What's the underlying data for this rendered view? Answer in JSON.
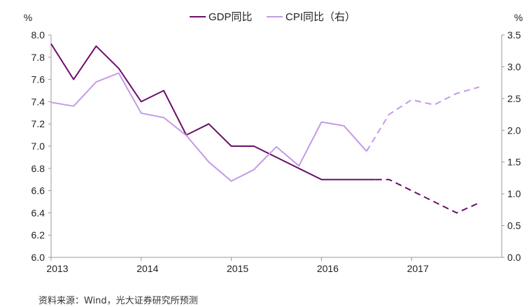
{
  "chart_data": {
    "type": "line",
    "left_unit": "%",
    "right_unit": "%",
    "x_ticks": [
      "2013",
      "2014",
      "2015",
      "2016",
      "2017"
    ],
    "x_range": [
      2013.0,
      2018.0
    ],
    "y_left": {
      "range": [
        6.0,
        8.0
      ],
      "ticks": [
        "8.0",
        "7.8",
        "7.6",
        "7.4",
        "7.2",
        "7.0",
        "6.8",
        "6.6",
        "6.4",
        "6.2",
        "6.0"
      ]
    },
    "y_right": {
      "range": [
        0.0,
        3.5
      ],
      "ticks": [
        "3.5",
        "3.0",
        "2.5",
        "2.0",
        "1.5",
        "1.0",
        "0.5",
        "0.0"
      ]
    },
    "series": [
      {
        "name": "GDP同比",
        "axis": "left",
        "color": "#6b0f6b",
        "actual": [
          [
            2013.0,
            7.92
          ],
          [
            2013.25,
            7.6
          ],
          [
            2013.5,
            7.9
          ],
          [
            2013.75,
            7.7
          ],
          [
            2014.0,
            7.4
          ],
          [
            2014.25,
            7.5
          ],
          [
            2014.5,
            7.1
          ],
          [
            2014.75,
            7.2
          ],
          [
            2015.0,
            7.0
          ],
          [
            2015.25,
            7.0
          ],
          [
            2015.5,
            6.9
          ],
          [
            2015.75,
            6.8
          ],
          [
            2016.0,
            6.7
          ],
          [
            2016.25,
            6.7
          ],
          [
            2016.5,
            6.7
          ],
          [
            2016.6,
            6.7
          ]
        ],
        "forecast": [
          [
            2016.6,
            6.7
          ],
          [
            2016.75,
            6.7
          ],
          [
            2017.0,
            6.6
          ],
          [
            2017.25,
            6.5
          ],
          [
            2017.5,
            6.4
          ],
          [
            2017.75,
            6.49
          ]
        ]
      },
      {
        "name": "CPI同比（右）",
        "axis": "right",
        "color": "#c49ae8",
        "actual": [
          [
            2013.0,
            2.44
          ],
          [
            2013.25,
            2.38
          ],
          [
            2013.5,
            2.76
          ],
          [
            2013.75,
            2.9
          ],
          [
            2014.0,
            2.27
          ],
          [
            2014.25,
            2.2
          ],
          [
            2014.5,
            1.92
          ],
          [
            2014.75,
            1.5
          ],
          [
            2015.0,
            1.2
          ],
          [
            2015.25,
            1.38
          ],
          [
            2015.5,
            1.74
          ],
          [
            2015.75,
            1.44
          ],
          [
            2016.0,
            2.13
          ],
          [
            2016.25,
            2.07
          ],
          [
            2016.5,
            1.67
          ]
        ],
        "forecast": [
          [
            2016.5,
            1.67
          ],
          [
            2016.75,
            2.25
          ],
          [
            2017.0,
            2.48
          ],
          [
            2017.25,
            2.4
          ],
          [
            2017.5,
            2.58
          ],
          [
            2017.75,
            2.68
          ]
        ]
      }
    ],
    "source": "资料来源：Wind，光大证券研究所预测"
  }
}
